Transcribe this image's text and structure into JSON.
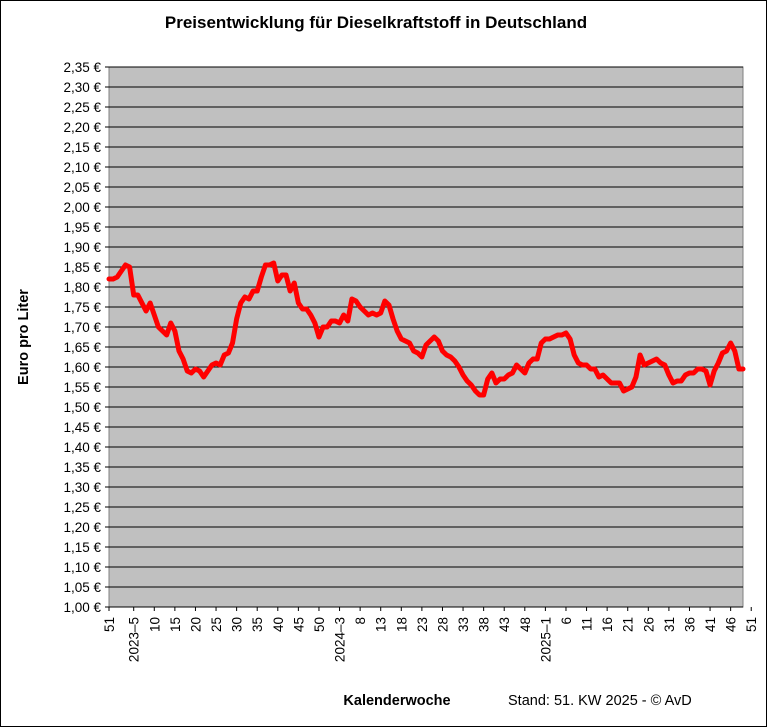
{
  "chart_data": {
    "type": "line",
    "title": "Preisentwicklung für Dieselkraftstoff in Deutschland",
    "xlabel": "Kalenderwoche",
    "ylabel": "Euro pro Liter",
    "footer": "Stand: 51. KW 2025 - © AvD",
    "ylim": [
      1.0,
      2.35
    ],
    "ytick_step": 0.05,
    "y_tick_labels": [
      "1,00 €",
      "1,05 €",
      "1,10 €",
      "1,15 €",
      "1,20 €",
      "1,25 €",
      "1,30 €",
      "1,35 €",
      "1,40 €",
      "1,45 €",
      "1,50 €",
      "1,55 €",
      "1,60 €",
      "1,65 €",
      "1,70 €",
      "1,75 €",
      "1,80 €",
      "1,85 €",
      "1,90 €",
      "1,95 €",
      "2,00 €",
      "2,05 €",
      "2,10 €",
      "2,15 €",
      "2,20 €",
      "2,25 €",
      "2,30 €",
      "2,35 €"
    ],
    "x_tick_labels": [
      {
        "index": 0,
        "label": "51"
      },
      {
        "index": 6,
        "label": "2023–5"
      },
      {
        "index": 11,
        "label": "10"
      },
      {
        "index": 16,
        "label": "15"
      },
      {
        "index": 21,
        "label": "20"
      },
      {
        "index": 26,
        "label": "25"
      },
      {
        "index": 31,
        "label": "30"
      },
      {
        "index": 36,
        "label": "35"
      },
      {
        "index": 41,
        "label": "40"
      },
      {
        "index": 46,
        "label": "45"
      },
      {
        "index": 51,
        "label": "50"
      },
      {
        "index": 56,
        "label": "2024–3"
      },
      {
        "index": 61,
        "label": "8"
      },
      {
        "index": 66,
        "label": "13"
      },
      {
        "index": 71,
        "label": "18"
      },
      {
        "index": 76,
        "label": "23"
      },
      {
        "index": 81,
        "label": "28"
      },
      {
        "index": 86,
        "label": "33"
      },
      {
        "index": 91,
        "label": "38"
      },
      {
        "index": 96,
        "label": "43"
      },
      {
        "index": 101,
        "label": "48"
      },
      {
        "index": 106,
        "label": "2025–1"
      },
      {
        "index": 111,
        "label": "6"
      },
      {
        "index": 116,
        "label": "11"
      },
      {
        "index": 121,
        "label": "16"
      },
      {
        "index": 126,
        "label": "21"
      },
      {
        "index": 131,
        "label": "26"
      },
      {
        "index": 136,
        "label": "31"
      },
      {
        "index": 141,
        "label": "36"
      },
      {
        "index": 146,
        "label": "41"
      },
      {
        "index": 151,
        "label": "46"
      },
      {
        "index": 156,
        "label": "51"
      }
    ],
    "grid": true,
    "colors": {
      "plot_background": "#c0c0c0",
      "line": "#ff0000",
      "grid": "#000000"
    },
    "series": [
      {
        "values": [
          1.82,
          1.82,
          1.825,
          1.84,
          1.855,
          1.85,
          1.78,
          1.78,
          1.76,
          1.74,
          1.76,
          1.73,
          1.7,
          1.69,
          1.68,
          1.71,
          1.69,
          1.64,
          1.62,
          1.59,
          1.585,
          1.595,
          1.59,
          1.575,
          1.59,
          1.605,
          1.61,
          1.605,
          1.63,
          1.635,
          1.66,
          1.72,
          1.76,
          1.775,
          1.77,
          1.79,
          1.79,
          1.825,
          1.855,
          1.855,
          1.86,
          1.815,
          1.83,
          1.83,
          1.79,
          1.81,
          1.76,
          1.745,
          1.745,
          1.73,
          1.71,
          1.675,
          1.7,
          1.7,
          1.715,
          1.715,
          1.71,
          1.73,
          1.715,
          1.77,
          1.765,
          1.75,
          1.74,
          1.73,
          1.735,
          1.73,
          1.735,
          1.765,
          1.755,
          1.72,
          1.69,
          1.67,
          1.665,
          1.66,
          1.64,
          1.635,
          1.625,
          1.655,
          1.665,
          1.675,
          1.665,
          1.64,
          1.63,
          1.625,
          1.615,
          1.6,
          1.58,
          1.565,
          1.555,
          1.54,
          1.53,
          1.53,
          1.57,
          1.585,
          1.56,
          1.57,
          1.57,
          1.58,
          1.585,
          1.605,
          1.595,
          1.585,
          1.61,
          1.62,
          1.62,
          1.66,
          1.67,
          1.67,
          1.675,
          1.68,
          1.68,
          1.685,
          1.67,
          1.63,
          1.61,
          1.605,
          1.605,
          1.595,
          1.595,
          1.575,
          1.58,
          1.57,
          1.56,
          1.56,
          1.56,
          1.54,
          1.545,
          1.55,
          1.575,
          1.63,
          1.605,
          1.61,
          1.615,
          1.62,
          1.61,
          1.605,
          1.58,
          1.56,
          1.565,
          1.565,
          1.58,
          1.585,
          1.585,
          1.595,
          1.595,
          1.59,
          1.555,
          1.59,
          1.61,
          1.635,
          1.64,
          1.66,
          1.64,
          1.595,
          1.595
        ]
      }
    ]
  }
}
